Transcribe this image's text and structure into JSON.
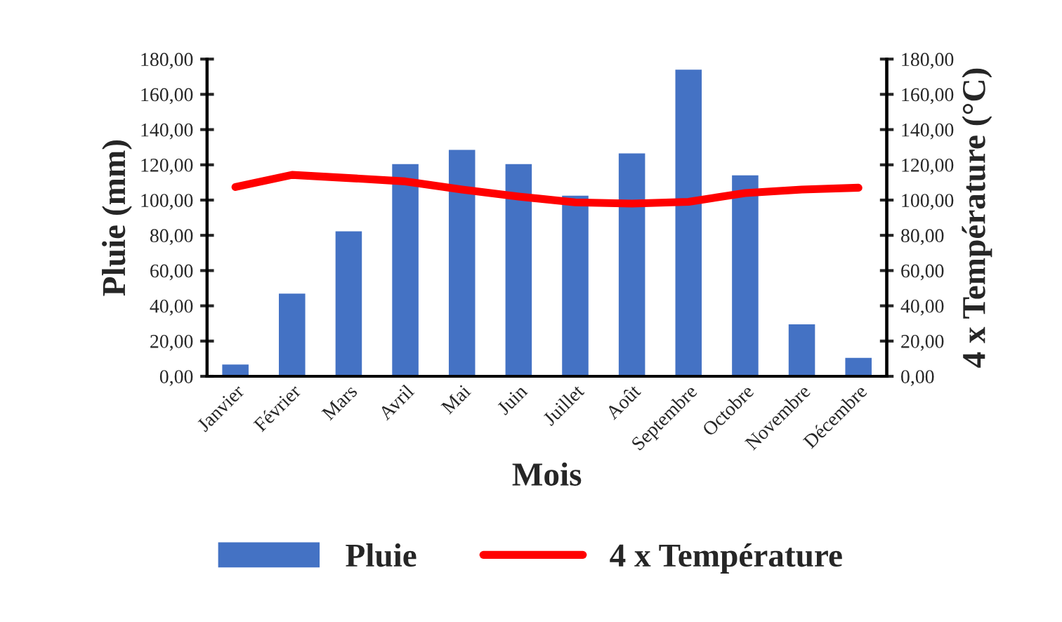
{
  "chart_data": {
    "type": "bar",
    "xlabel": "Mois",
    "ylabel": "Pluie (mm)",
    "y2label": "4 x Température (°C)",
    "categories": [
      "Janvier",
      "Février",
      "Mars",
      "Avril",
      "Mai",
      "Juin",
      "Juillet",
      "Août",
      "Septembre",
      "Octobre",
      "Novembre",
      "Décembre"
    ],
    "series": [
      {
        "name": "Pluie",
        "color": "#4472c4",
        "values": [
          7.2,
          47.5,
          82.8,
          121,
          129,
          121,
          103,
          127,
          174.5,
          114.6,
          30,
          11
        ]
      },
      {
        "name": "4 x Température",
        "type": "line",
        "axis": "y2",
        "color": "#ff0000",
        "values": [
          107.4,
          114.3,
          112.5,
          110.6,
          106,
          102,
          98.7,
          98,
          99,
          104,
          106,
          107
        ]
      }
    ],
    "ylim": [
      0,
      180
    ],
    "yticks": [
      {
        "value": 0,
        "label": "0,00"
      },
      {
        "value": 20,
        "label": "20,00"
      },
      {
        "value": 40,
        "label": "40,00"
      },
      {
        "value": 60,
        "label": "60,00"
      },
      {
        "value": 80,
        "label": "80,00"
      },
      {
        "value": 100,
        "label": "100,00"
      },
      {
        "value": 120,
        "label": "120,00"
      },
      {
        "value": 140,
        "label": "140,00"
      },
      {
        "value": 160,
        "label": "160,00"
      },
      {
        "value": 180,
        "label": "180,00"
      }
    ],
    "y2lim": [
      0,
      180
    ],
    "y2ticks": [
      {
        "value": 0,
        "label": "0,00"
      },
      {
        "value": 20,
        "label": "20,00"
      },
      {
        "value": 40,
        "label": "40,00"
      },
      {
        "value": 60,
        "label": "60,00"
      },
      {
        "value": 80,
        "label": "80,00"
      },
      {
        "value": 100,
        "label": "100,00"
      },
      {
        "value": 120,
        "label": "120,00"
      },
      {
        "value": 140,
        "label": "140,00"
      },
      {
        "value": 160,
        "label": "160,00"
      },
      {
        "value": 180,
        "label": "180,00"
      }
    ],
    "legend": "bottom",
    "grid": false
  }
}
